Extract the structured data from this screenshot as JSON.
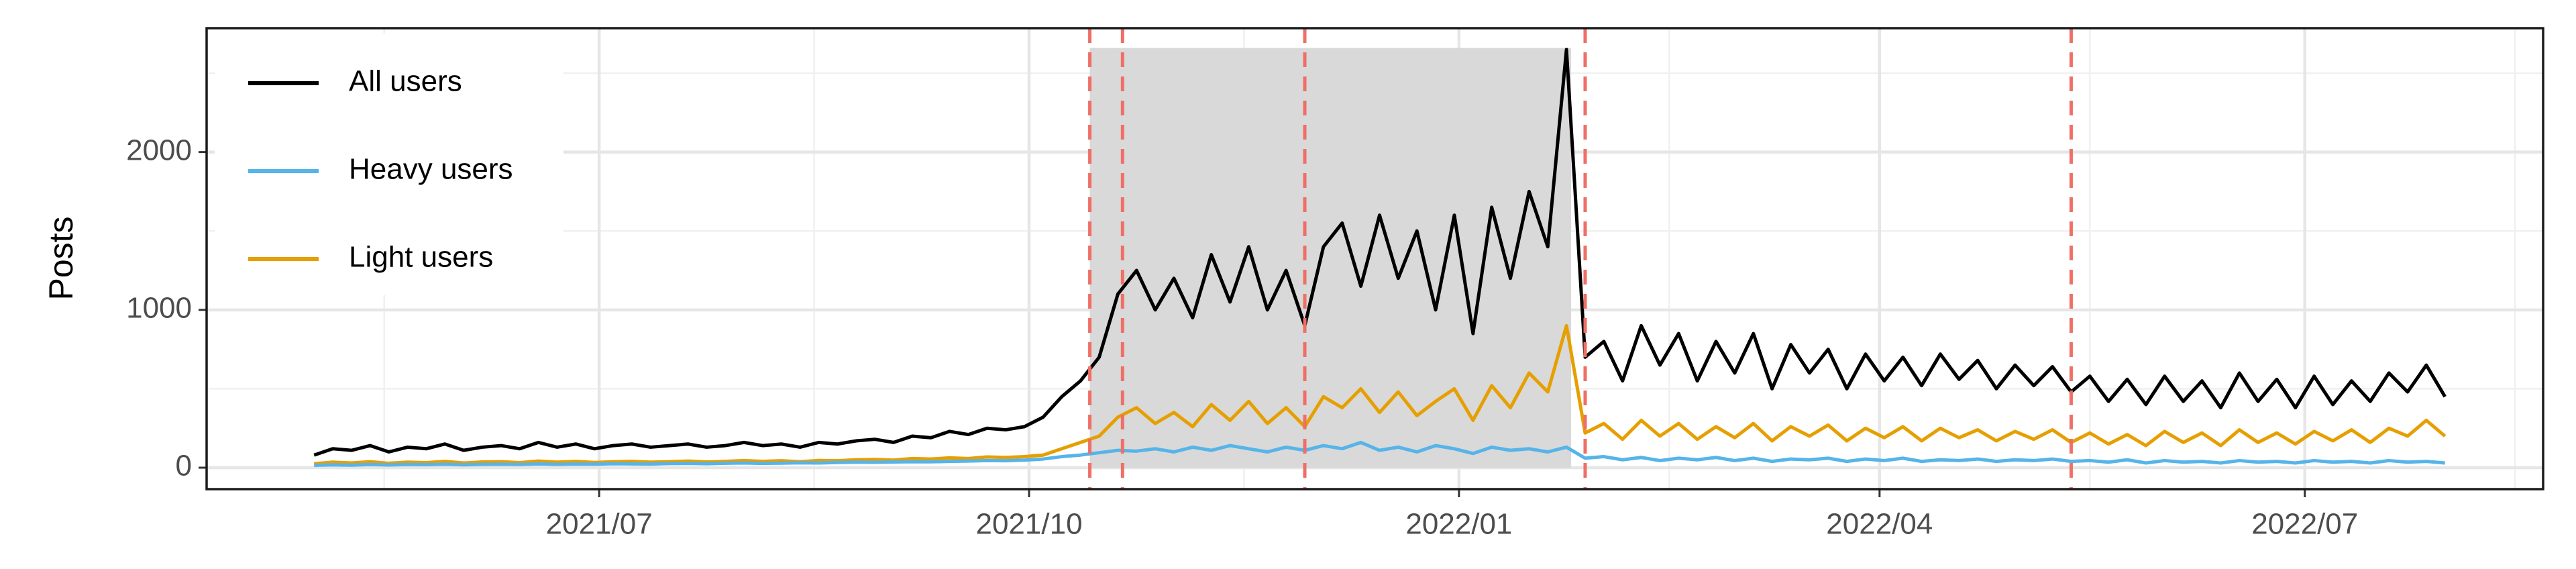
{
  "chart_data": {
    "type": "line",
    "ylabel": "Posts",
    "x": [
      0,
      4,
      8,
      12,
      16,
      20,
      24,
      28,
      32,
      36,
      40,
      44,
      48,
      52,
      56,
      60,
      64,
      68,
      72,
      76,
      80,
      84,
      88,
      92,
      96,
      100,
      104,
      108,
      112,
      116,
      120,
      124,
      128,
      132,
      136,
      140,
      144,
      148,
      152,
      156,
      160,
      164,
      168,
      172,
      176,
      180,
      184,
      188,
      192,
      196,
      200,
      204,
      208,
      212,
      216,
      220,
      224,
      228,
      232,
      236,
      240,
      244,
      248,
      252,
      256,
      260,
      264,
      268,
      272,
      276,
      280,
      284,
      288,
      292,
      296,
      300,
      304,
      308,
      312,
      316,
      320,
      324,
      328,
      332,
      336,
      340,
      344,
      348,
      352,
      356,
      360,
      364,
      368,
      372,
      376,
      380,
      384,
      388,
      392,
      396,
      400,
      404,
      408,
      412,
      416,
      420,
      424,
      428,
      432,
      436,
      440,
      444,
      448,
      452,
      456
    ],
    "series": [
      {
        "name": "All users",
        "color": "#000000",
        "values": [
          80,
          120,
          110,
          140,
          100,
          130,
          120,
          150,
          110,
          130,
          140,
          120,
          160,
          130,
          150,
          120,
          140,
          150,
          130,
          140,
          150,
          130,
          140,
          160,
          140,
          150,
          130,
          160,
          150,
          170,
          180,
          160,
          200,
          190,
          230,
          210,
          250,
          240,
          260,
          320,
          450,
          550,
          700,
          1100,
          1250,
          1000,
          1200,
          950,
          1350,
          1050,
          1400,
          1000,
          1250,
          900,
          1400,
          1550,
          1150,
          1600,
          1200,
          1500,
          1000,
          1600,
          850,
          1650,
          1200,
          1750,
          1400,
          2650,
          700,
          800,
          550,
          900,
          650,
          850,
          550,
          800,
          600,
          850,
          500,
          780,
          600,
          750,
          500,
          720,
          550,
          700,
          520,
          720,
          560,
          680,
          500,
          650,
          520,
          640,
          480,
          580,
          420,
          560,
          400,
          580,
          420,
          550,
          380,
          600,
          420,
          560,
          380,
          580,
          400,
          550,
          420,
          600,
          480,
          650,
          450
        ]
      },
      {
        "name": "Heavy users",
        "color": "#56b4e9",
        "values": [
          15,
          18,
          16,
          20,
          17,
          20,
          19,
          22,
          18,
          21,
          22,
          20,
          24,
          21,
          23,
          22,
          25,
          24,
          23,
          26,
          27,
          25,
          28,
          30,
          27,
          29,
          31,
          30,
          33,
          35,
          34,
          36,
          38,
          37,
          40,
          42,
          45,
          44,
          48,
          55,
          70,
          80,
          95,
          110,
          105,
          120,
          100,
          130,
          110,
          140,
          120,
          100,
          130,
          110,
          140,
          120,
          160,
          110,
          130,
          100,
          140,
          120,
          90,
          130,
          110,
          120,
          100,
          130,
          60,
          70,
          50,
          65,
          45,
          60,
          50,
          65,
          45,
          60,
          40,
          55,
          50,
          60,
          40,
          55,
          45,
          60,
          40,
          50,
          45,
          55,
          40,
          50,
          45,
          55,
          40,
          45,
          35,
          50,
          30,
          45,
          35,
          40,
          30,
          45,
          35,
          40,
          30,
          45,
          35,
          40,
          30,
          45,
          35,
          40,
          30
        ]
      },
      {
        "name": "Light users",
        "color": "#e69f00",
        "values": [
          25,
          35,
          30,
          38,
          28,
          35,
          32,
          40,
          30,
          36,
          38,
          32,
          42,
          35,
          40,
          33,
          38,
          40,
          35,
          38,
          42,
          36,
          40,
          45,
          40,
          44,
          38,
          46,
          44,
          50,
          52,
          48,
          58,
          55,
          62,
          58,
          68,
          65,
          70,
          80,
          120,
          160,
          200,
          320,
          380,
          280,
          350,
          260,
          400,
          300,
          420,
          280,
          380,
          260,
          450,
          380,
          500,
          350,
          480,
          330,
          420,
          500,
          300,
          520,
          380,
          600,
          480,
          900,
          220,
          280,
          180,
          300,
          200,
          280,
          180,
          260,
          190,
          280,
          170,
          260,
          200,
          270,
          170,
          250,
          190,
          260,
          170,
          250,
          190,
          240,
          170,
          230,
          180,
          240,
          160,
          220,
          150,
          210,
          140,
          230,
          160,
          220,
          140,
          240,
          160,
          220,
          150,
          230,
          170,
          240,
          160,
          250,
          200,
          300,
          200
        ]
      }
    ],
    "xlim": [
      -23,
      477
    ],
    "xticks": [
      {
        "value": 61,
        "label": "2021/07"
      },
      {
        "value": 153,
        "label": "2021/10"
      },
      {
        "value": 245,
        "label": "2022/01"
      },
      {
        "value": 335,
        "label": "2022/04"
      },
      {
        "value": 426,
        "label": "2022/07"
      }
    ],
    "x_minor_ticks": [
      15,
      107,
      199,
      290,
      380,
      471
    ],
    "ylim": [
      -136,
      2785
    ],
    "yticks": [
      0,
      1000,
      2000
    ],
    "y_minor_ticks": [
      500,
      1500,
      2500
    ],
    "grid": true,
    "shade": {
      "x": [
        166,
        269
      ],
      "y": [
        0,
        2660
      ],
      "color": "#d9d9d9"
    },
    "vlines": {
      "x": [
        166,
        173,
        212,
        272,
        376
      ],
      "color": "#ef6f66"
    },
    "legend": "top-left"
  }
}
